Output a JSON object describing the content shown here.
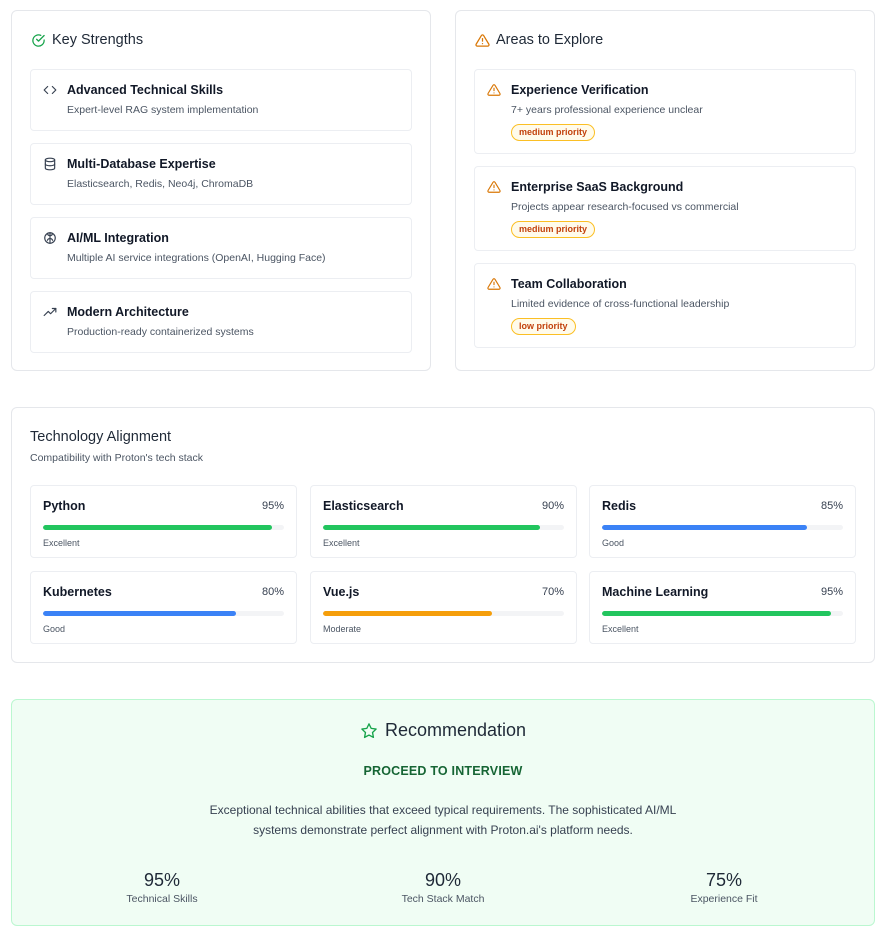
{
  "strengths": {
    "title": "Key Strengths",
    "items": [
      {
        "title": "Advanced Technical Skills",
        "desc": "Expert-level RAG system implementation",
        "icon": "code-icon"
      },
      {
        "title": "Multi-Database Expertise",
        "desc": "Elasticsearch, Redis, Neo4j, ChromaDB",
        "icon": "database-icon"
      },
      {
        "title": "AI/ML Integration",
        "desc": "Multiple AI service integrations (OpenAI, Hugging Face)",
        "icon": "brain-icon"
      },
      {
        "title": "Modern Architecture",
        "desc": "Production-ready containerized systems",
        "icon": "trending-up-icon"
      }
    ]
  },
  "explore": {
    "title": "Areas to Explore",
    "items": [
      {
        "title": "Experience Verification",
        "desc": "7+ years professional experience unclear",
        "badge": "medium priority"
      },
      {
        "title": "Enterprise SaaS Background",
        "desc": "Projects appear research-focused vs commercial",
        "badge": "medium priority"
      },
      {
        "title": "Team Collaboration",
        "desc": "Limited evidence of cross-functional leadership",
        "badge": "low priority"
      }
    ]
  },
  "tech": {
    "title": "Technology Alignment",
    "subtitle": "Compatibility with Proton's tech stack",
    "items": [
      {
        "name": "Python",
        "pct_label": "95%",
        "pct": 95,
        "label": "Excellent",
        "color": "#22c55e"
      },
      {
        "name": "Elasticsearch",
        "pct_label": "90%",
        "pct": 90,
        "label": "Excellent",
        "color": "#22c55e"
      },
      {
        "name": "Redis",
        "pct_label": "85%",
        "pct": 85,
        "label": "Good",
        "color": "#3b82f6"
      },
      {
        "name": "Kubernetes",
        "pct_label": "80%",
        "pct": 80,
        "label": "Good",
        "color": "#3b82f6"
      },
      {
        "name": "Vue.js",
        "pct_label": "70%",
        "pct": 70,
        "label": "Moderate",
        "color": "#f59e0b"
      },
      {
        "name": "Machine Learning",
        "pct_label": "95%",
        "pct": 95,
        "label": "Excellent",
        "color": "#22c55e"
      }
    ]
  },
  "recommendation": {
    "title": "Recommendation",
    "verdict": "PROCEED TO INTERVIEW",
    "text_line1": "Exceptional technical abilities that exceed typical requirements. The sophisticated AI/ML",
    "text_line2": "systems demonstrate perfect alignment with Proton.ai's platform needs.",
    "stats": [
      {
        "value": "95%",
        "label": "Technical Skills"
      },
      {
        "value": "90%",
        "label": "Tech Stack Match"
      },
      {
        "value": "75%",
        "label": "Experience Fit"
      }
    ]
  },
  "colors": {
    "success": "#16a34a",
    "warning": "#d97706",
    "border": "#e5e7eb"
  }
}
